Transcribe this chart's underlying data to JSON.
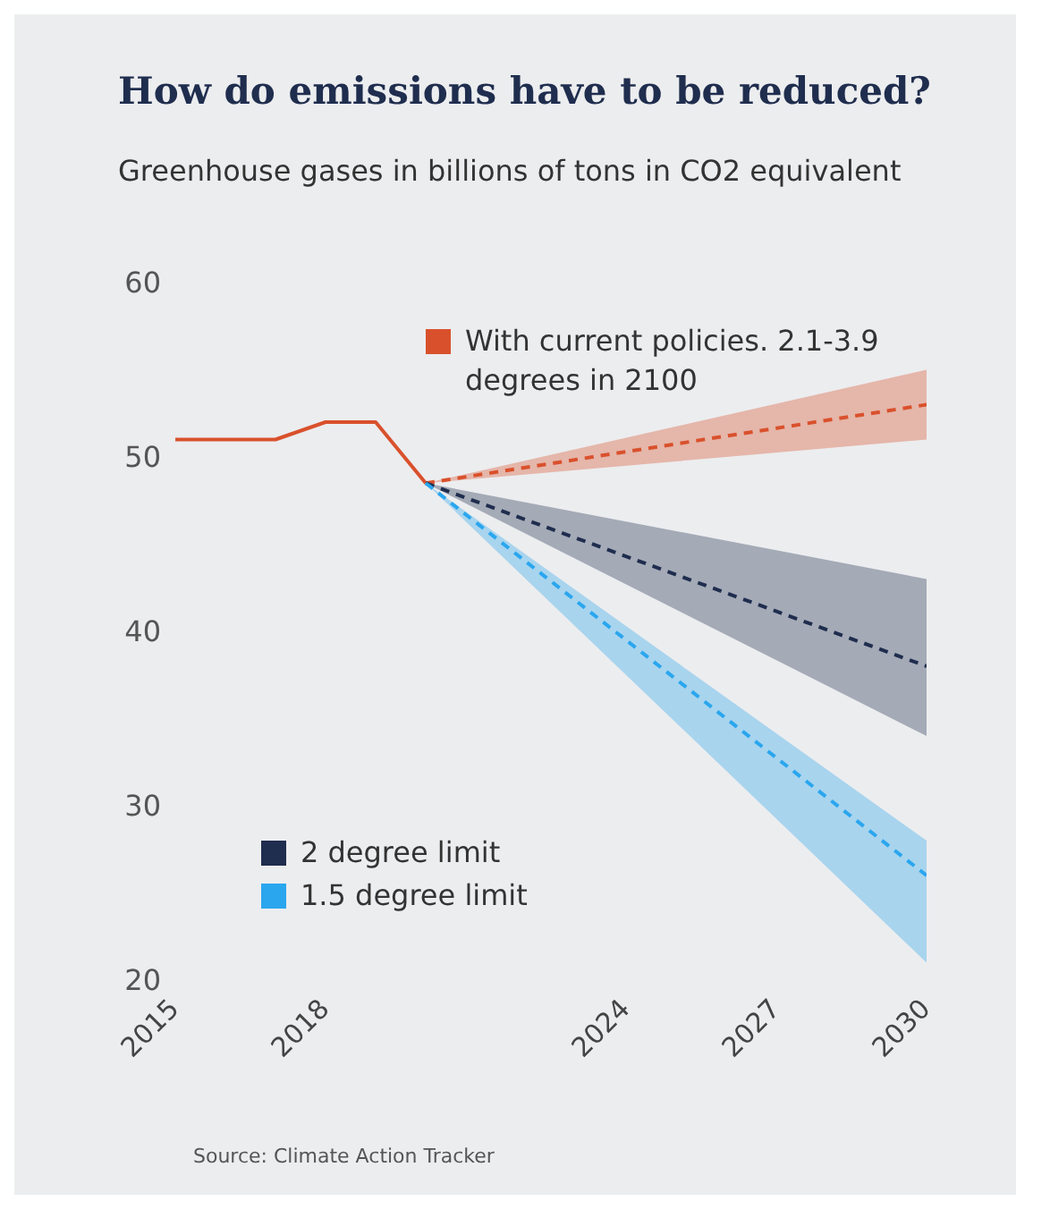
{
  "chart_data": {
    "type": "line",
    "title": "How do emissions have to be reduced?",
    "subtitle": "Greenhouse gases in billions of tons in CO2 equivalent",
    "annotations": [
      "Source: Climate Action Tracker"
    ],
    "xlim": [
      2015,
      2030
    ],
    "xticks": [
      2015,
      2018,
      2024,
      2027,
      2030
    ],
    "ylim": [
      20,
      60
    ],
    "yticks": [
      20,
      30,
      40,
      50,
      60
    ],
    "grid": false,
    "legend": "top right",
    "marker": "none",
    "series": [
      {
        "color": "#d9512c",
        "line_style": "solid",
        "x": [
          2015,
          2017,
          2018,
          2019,
          2020
        ],
        "values": [
          51,
          51,
          52,
          52,
          48.5
        ]
      },
      {
        "name": "With current policies. 2.1-3.9 degrees in 2100",
        "color": "#d9512c",
        "line_style": "dashed",
        "x": [
          2020,
          2030
        ],
        "values": [
          48.5,
          53
        ],
        "lower": [
          48.5,
          51
        ],
        "upper": [
          48.5,
          55
        ]
      },
      {
        "name": "2 degree limit",
        "color": "#1f2d4e",
        "line_style": "dashed",
        "x": [
          2020,
          2030
        ],
        "values": [
          48.5,
          38
        ],
        "lower": [
          48.5,
          34
        ],
        "upper": [
          48.5,
          43
        ]
      },
      {
        "name": "1.5 degree limit",
        "color": "#2aa6ee",
        "line_style": "dashed",
        "x": [
          2020,
          2030
        ],
        "values": [
          48.5,
          26
        ],
        "lower": [
          48.5,
          21
        ],
        "upper": [
          48.5,
          28
        ]
      }
    ]
  }
}
